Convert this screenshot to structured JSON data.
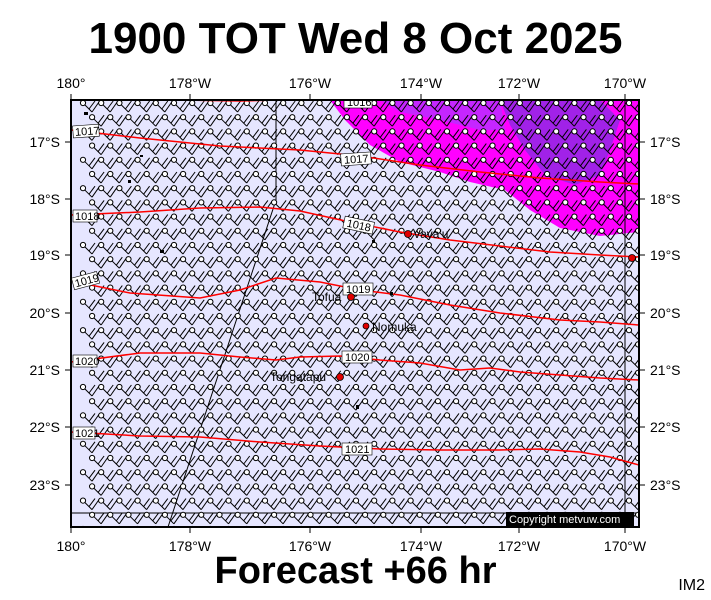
{
  "title": "1900 TOT Wed 8 Oct 2025",
  "footer": "Forecast +66 hr",
  "corner_code": "IM2",
  "copyright": "Copyright metvuw.com",
  "lon_labels": [
    "180°",
    "178°W",
    "176°W",
    "174°W",
    "172°W",
    "170°W"
  ],
  "lat_labels": [
    "17°S",
    "18°S",
    "19°S",
    "20°S",
    "21°S",
    "22°S",
    "23°S"
  ],
  "isobar_labels": [
    "1016",
    "1017",
    "1017",
    "1018",
    "1018",
    "1019",
    "1019",
    "1020",
    "1020",
    "1021",
    "1021"
  ],
  "places": [
    "Vava'u",
    "Tofua",
    "Nomuka",
    "Tongatapu"
  ],
  "colors": {
    "background": "#e6e6ff",
    "isobar": "#ff0000",
    "rain_light": "#ff00ff",
    "rain_heavy": "#8000ff",
    "frame": "#000000"
  }
}
